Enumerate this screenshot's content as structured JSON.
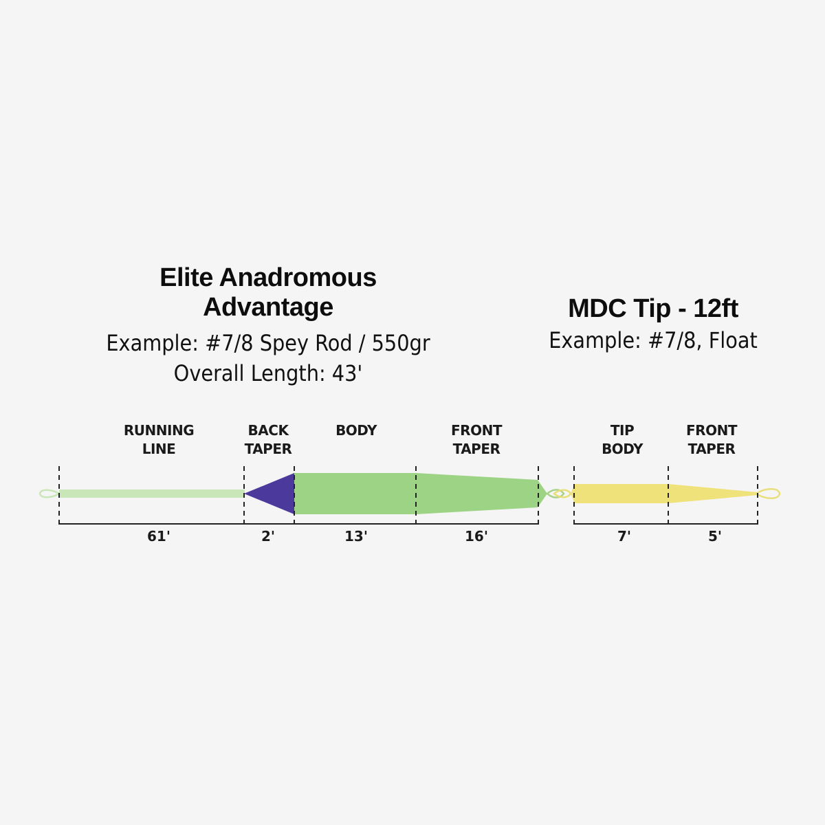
{
  "line": {
    "title_line1": "Elite Anadromous",
    "title_line2": "Advantage",
    "example": "Example: #7/8 Spey Rod / 550gr",
    "overall_length": "Overall Length: 43'"
  },
  "tip": {
    "title": "MDC Tip - 12ft",
    "example": "Example: #7/8, Float"
  },
  "segments": [
    {
      "label_1": "RUNNING",
      "label_2": "LINE",
      "length": "61'"
    },
    {
      "label_1": "BACK",
      "label_2": "TAPER",
      "length": "2'"
    },
    {
      "label_1": "BODY",
      "label_2": "",
      "length": "13'"
    },
    {
      "label_1": "FRONT",
      "label_2": "TAPER",
      "length": "16'"
    },
    {
      "label_1": "TIP",
      "label_2": "BODY",
      "length": "7'"
    },
    {
      "label_1": "FRONT",
      "label_2": "TAPER",
      "length": "5'"
    }
  ],
  "colors": {
    "running_line": "#c9e6b8",
    "back_taper": "#4b3a9c",
    "body": "#9dd385",
    "tip": "#f0e27a",
    "loop": "#e8e3a0"
  }
}
